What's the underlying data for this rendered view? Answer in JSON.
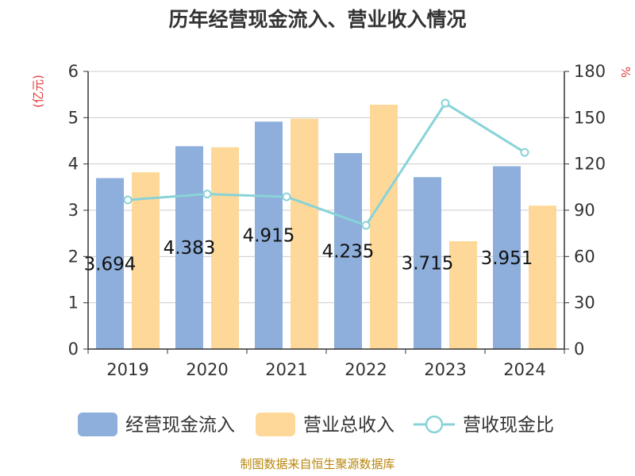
{
  "chart_data": {
    "type": "bar",
    "title": "历年经营现金流入、营业收入情况",
    "categories": [
      "2019",
      "2020",
      "2021",
      "2022",
      "2023",
      "2024"
    ],
    "y_left": {
      "unit_label": "(亿元)",
      "range": [
        0,
        6
      ],
      "ticks": [
        "0",
        "1",
        "2",
        "3",
        "4",
        "5",
        "6"
      ]
    },
    "y_right": {
      "unit_label": "%",
      "range": [
        0,
        180
      ],
      "ticks": [
        "0",
        "30",
        "60",
        "90",
        "120",
        "150",
        "180"
      ]
    },
    "series": [
      {
        "name": "经营现金流入",
        "type": "bar",
        "axis": "left",
        "color": "#8eaedb",
        "values": [
          3.694,
          4.383,
          4.915,
          4.235,
          3.715,
          3.951
        ],
        "labels": [
          "3.694",
          "4.383",
          "4.915",
          "4.235",
          "3.715",
          "3.951"
        ]
      },
      {
        "name": "营业总收入",
        "type": "bar",
        "axis": "left",
        "color": "#fdd898",
        "values": [
          3.82,
          4.36,
          4.98,
          5.28,
          2.33,
          3.1
        ]
      },
      {
        "name": "营收现金比",
        "type": "line",
        "axis": "right",
        "color": "#89d3d8",
        "values": [
          96.7,
          100.5,
          98.7,
          80.2,
          159.4,
          127.5
        ]
      }
    ],
    "grid": true,
    "legend_position": "bottom"
  },
  "source_text": "制图数据来自恒生聚源数据库"
}
